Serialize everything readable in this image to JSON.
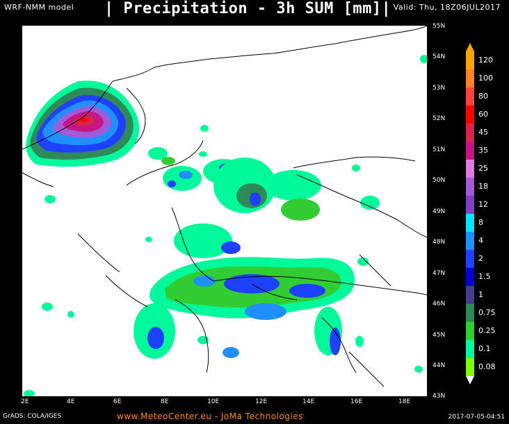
{
  "header": {
    "model": "WRF-NMM model",
    "title": "| Precipitation - 3h SUM [mm]|",
    "valid": "Valid: Thu, 18Z06JUL2017"
  },
  "axes": {
    "latitudes": [
      "55N",
      "54N",
      "53N",
      "52N",
      "51N",
      "50N",
      "49N",
      "48N",
      "47N",
      "46N",
      "45N",
      "44N",
      "43N"
    ],
    "longitudes": [
      "2E",
      "4E",
      "6E",
      "8E",
      "10E",
      "12E",
      "14E",
      "16E",
      "18E"
    ]
  },
  "legend": {
    "values": [
      "120",
      "100",
      "80",
      "60",
      "45",
      "35",
      "25",
      "18",
      "12",
      "8",
      "4",
      "2",
      "1.5",
      "1",
      "0.75",
      "0.25",
      "0.1",
      "0.08"
    ],
    "colors": [
      "#f5a500",
      "#ff7f24",
      "#ff4040",
      "#ff0000",
      "#d4264a",
      "#c71585",
      "#e07ae0",
      "#a15bd6",
      "#7f40c0",
      "#00e5ff",
      "#1e90ff",
      "#1e40ff",
      "#0000d0",
      "#483d8b",
      "#2e8b57",
      "#32cd32",
      "#00fa9a",
      "#7cfc00"
    ]
  },
  "footer": {
    "credit": "GrADS: COLA/IGES",
    "site": "www.MeteoCenter.eu  -  JoMa Technologies",
    "timestamp": "2017-07-05-04:51"
  }
}
